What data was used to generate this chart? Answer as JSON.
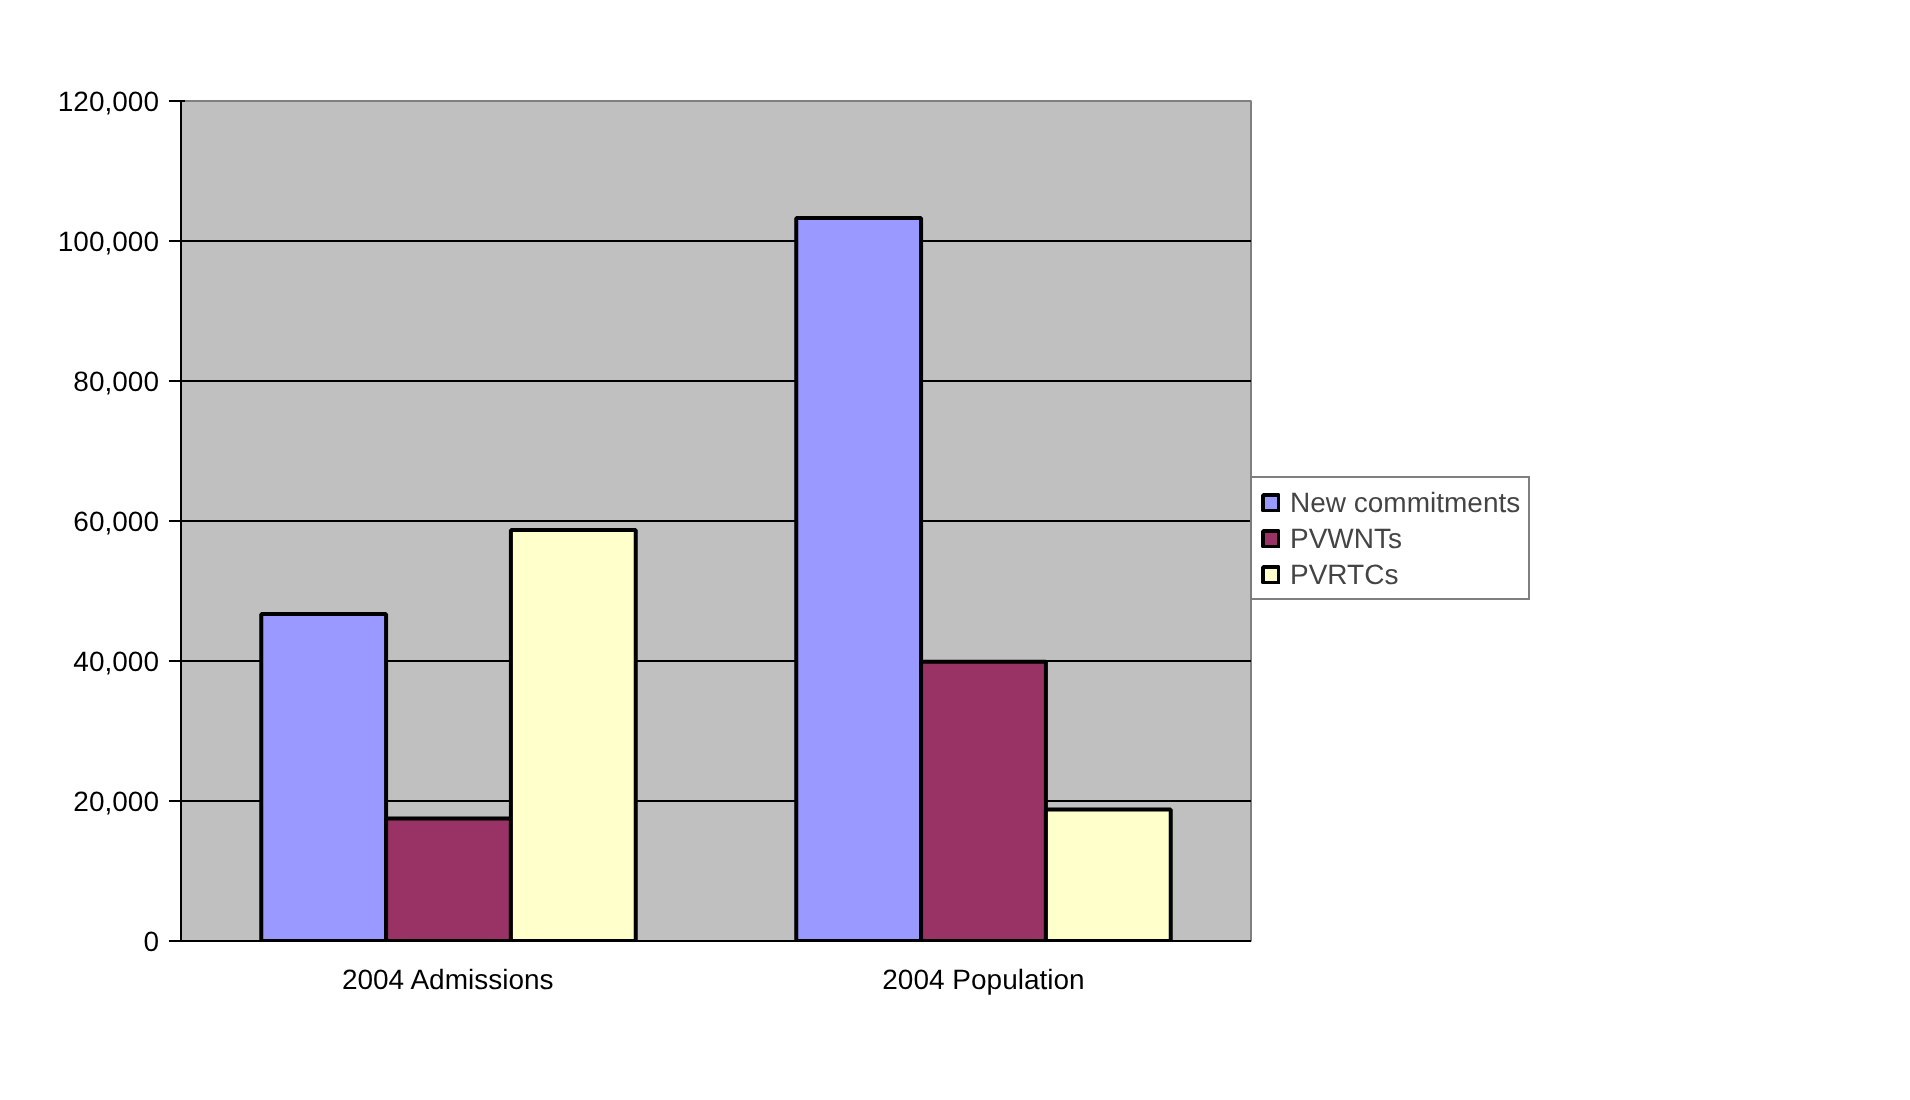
{
  "chart_data": {
    "type": "bar",
    "categories": [
      "2004 Admissions",
      "2004 Population"
    ],
    "series": [
      {
        "name": "New commitments",
        "color": "#9999ff",
        "values": [
          46700,
          103300
        ]
      },
      {
        "name": "PVWNTs",
        "color": "#993366",
        "values": [
          17500,
          39900
        ]
      },
      {
        "name": "PVRTCs",
        "color": "#ffffcc",
        "values": [
          58700,
          18800
        ]
      }
    ],
    "ylim": [
      0,
      120000
    ],
    "yticks": [
      {
        "value": 0,
        "label": "0"
      },
      {
        "value": 20000,
        "label": "20,000"
      },
      {
        "value": 40000,
        "label": "40,000"
      },
      {
        "value": 60000,
        "label": "60,000"
      },
      {
        "value": 80000,
        "label": "80,000"
      },
      {
        "value": 100000,
        "label": "100,000"
      },
      {
        "value": 120000,
        "label": "120,000"
      }
    ],
    "grid": "y",
    "legend": "right"
  }
}
